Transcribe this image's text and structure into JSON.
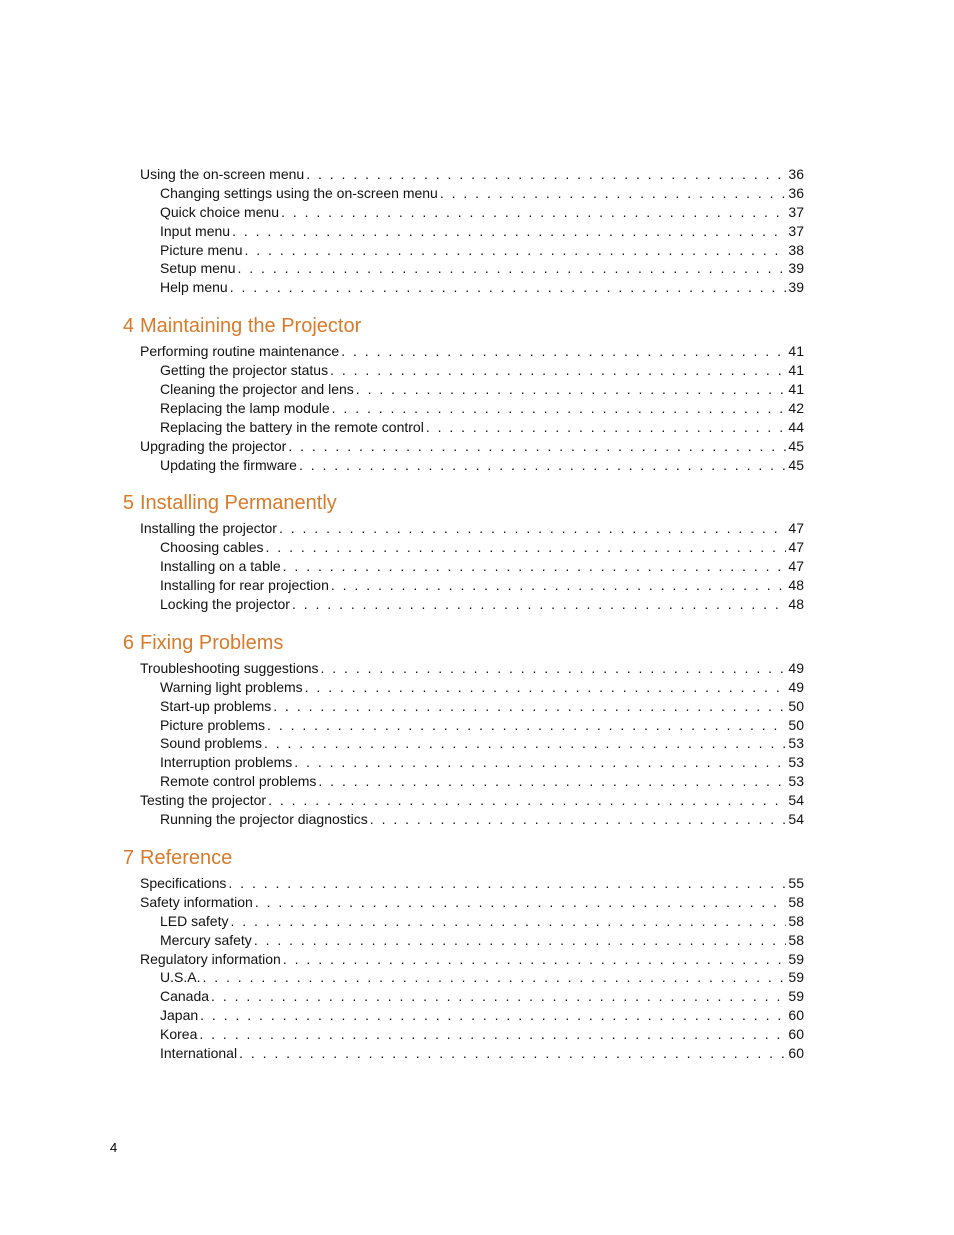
{
  "page_number": "4",
  "colors": {
    "accent": "#d87a2a",
    "text": "#000000",
    "background": "#ffffff"
  },
  "font": {
    "body_size_pt": 10,
    "heading_size_pt": 15
  },
  "toc": [
    {
      "type": "item",
      "indent": 1,
      "label": "Using the on-screen menu",
      "page": "36"
    },
    {
      "type": "item",
      "indent": 2,
      "label": "Changing settings using the on-screen menu",
      "page": "36"
    },
    {
      "type": "item",
      "indent": 2,
      "label": "Quick choice menu",
      "page": "37"
    },
    {
      "type": "item",
      "indent": 2,
      "label": "Input menu",
      "page": "37"
    },
    {
      "type": "item",
      "indent": 2,
      "label": "Picture menu",
      "page": "38"
    },
    {
      "type": "item",
      "indent": 2,
      "label": "Setup menu",
      "page": "39"
    },
    {
      "type": "item",
      "indent": 2,
      "label": "Help menu",
      "page": "39"
    },
    {
      "type": "chapter",
      "num": "4",
      "title": "Maintaining the Projector"
    },
    {
      "type": "item",
      "indent": 1,
      "label": "Performing routine maintenance",
      "page": "41"
    },
    {
      "type": "item",
      "indent": 2,
      "label": "Getting the projector status",
      "page": "41"
    },
    {
      "type": "item",
      "indent": 2,
      "label": "Cleaning the projector and lens",
      "page": "41"
    },
    {
      "type": "item",
      "indent": 2,
      "label": "Replacing the lamp module",
      "page": "42"
    },
    {
      "type": "item",
      "indent": 2,
      "label": "Replacing the battery in the remote control",
      "page": "44"
    },
    {
      "type": "item",
      "indent": 1,
      "label": "Upgrading the projector",
      "page": "45"
    },
    {
      "type": "item",
      "indent": 2,
      "label": "Updating the firmware",
      "page": "45"
    },
    {
      "type": "chapter",
      "num": "5",
      "title": "Installing Permanently"
    },
    {
      "type": "item",
      "indent": 1,
      "label": "Installing the projector",
      "page": "47"
    },
    {
      "type": "item",
      "indent": 2,
      "label": "Choosing cables",
      "page": "47"
    },
    {
      "type": "item",
      "indent": 2,
      "label": "Installing on a table",
      "page": "47"
    },
    {
      "type": "item",
      "indent": 2,
      "label": "Installing for rear projection",
      "page": "48"
    },
    {
      "type": "item",
      "indent": 2,
      "label": "Locking the projector",
      "page": "48"
    },
    {
      "type": "chapter",
      "num": "6",
      "title": "Fixing Problems"
    },
    {
      "type": "item",
      "indent": 1,
      "label": "Troubleshooting suggestions",
      "page": "49"
    },
    {
      "type": "item",
      "indent": 2,
      "label": "Warning light problems",
      "page": "49"
    },
    {
      "type": "item",
      "indent": 2,
      "label": "Start-up problems",
      "page": "50"
    },
    {
      "type": "item",
      "indent": 2,
      "label": "Picture problems",
      "page": "50"
    },
    {
      "type": "item",
      "indent": 2,
      "label": "Sound problems",
      "page": "53"
    },
    {
      "type": "item",
      "indent": 2,
      "label": "Interruption problems",
      "page": "53"
    },
    {
      "type": "item",
      "indent": 2,
      "label": "Remote control problems",
      "page": "53"
    },
    {
      "type": "item",
      "indent": 1,
      "label": "Testing the projector",
      "page": "54"
    },
    {
      "type": "item",
      "indent": 2,
      "label": "Running the projector diagnostics",
      "page": "54"
    },
    {
      "type": "chapter",
      "num": "7",
      "title": "Reference"
    },
    {
      "type": "item",
      "indent": 1,
      "label": "Specifications",
      "page": "55"
    },
    {
      "type": "item",
      "indent": 1,
      "label": "Safety information",
      "page": "58"
    },
    {
      "type": "item",
      "indent": 2,
      "label": "LED safety",
      "page": "58"
    },
    {
      "type": "item",
      "indent": 2,
      "label": "Mercury safety",
      "page": "58"
    },
    {
      "type": "item",
      "indent": 1,
      "label": "Regulatory information",
      "page": "59"
    },
    {
      "type": "item",
      "indent": 2,
      "label": "U.S.A.",
      "page": "59"
    },
    {
      "type": "item",
      "indent": 2,
      "label": "Canada",
      "page": "59"
    },
    {
      "type": "item",
      "indent": 2,
      "label": "Japan",
      "page": "60"
    },
    {
      "type": "item",
      "indent": 2,
      "label": "Korea",
      "page": "60"
    },
    {
      "type": "item",
      "indent": 2,
      "label": "International",
      "page": "60"
    }
  ]
}
